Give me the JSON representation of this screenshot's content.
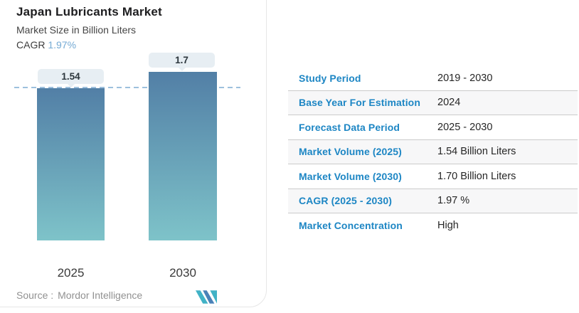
{
  "header": {
    "title": "Japan Lubricants Market",
    "subtitle": "Market Size in Billion Liters",
    "cagr_label": "CAGR",
    "cagr_value": "1.97%"
  },
  "chart_data": {
    "type": "bar",
    "categories": [
      "2025",
      "2030"
    ],
    "values": [
      1.54,
      1.7
    ],
    "value_labels": [
      "1.54",
      "1.7"
    ],
    "title": "Japan Lubricants Market",
    "ylabel": "Market Size in Billion Liters",
    "ylim": [
      0,
      1.7
    ],
    "reference_line": 1.54,
    "grid": false,
    "legend": "none",
    "bar_gradient_top": "#527fa6",
    "bar_gradient_bottom": "#7ec3c9",
    "reference_line_color": "#9dc0dd",
    "value_label_bg": "#e7eef3"
  },
  "table": {
    "rows": [
      {
        "label": "Study Period",
        "value": "2019 - 2030"
      },
      {
        "label": "Base Year For Estimation",
        "value": "2024"
      },
      {
        "label": "Forecast Data Period",
        "value": "2025 - 2030"
      },
      {
        "label": "Market Volume (2025)",
        "value": "1.54 Billion Liters"
      },
      {
        "label": "Market Volume (2030)",
        "value": "1.70 Billion Liters"
      },
      {
        "label": "CAGR (2025 - 2030)",
        "value": "1.97 %"
      },
      {
        "label": "Market Concentration",
        "value": "High"
      }
    ]
  },
  "footer": {
    "source_label": "Source :",
    "source_value": "Mordor Intelligence",
    "logo": "mordor-intelligence-logo"
  },
  "colors": {
    "table_label_blue": "#1d86c4",
    "cagr_accent_blue": "#74aad4",
    "separator_gray": "#cbcbcb",
    "logo_teal": "#41b2c6",
    "logo_blue": "#4a82b8"
  }
}
